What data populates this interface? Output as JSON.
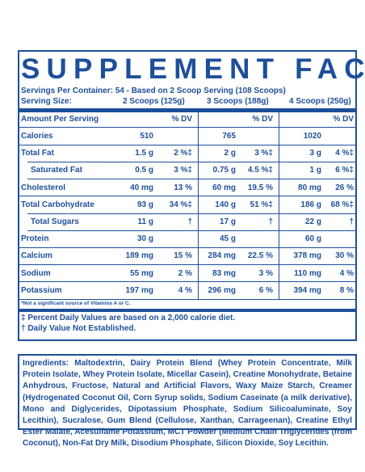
{
  "title": "SUPPLEMENT FACTS",
  "servings_per_container": "Servings Per Container: 54 - Based on 2 Scoop Serving (108 Scoops)",
  "serving_size_label": "Serving Size:",
  "serving_sizes": [
    "2 Scoops (125g)",
    "3 Scoops (188g)",
    "4 Scoops (250g)"
  ],
  "table": {
    "header": {
      "label": "Amount Per Serving",
      "dv": [
        "% DV",
        "% DV",
        "% DV"
      ]
    },
    "rows": [
      {
        "label": "Calories",
        "cells": [
          {
            "amount": "510"
          },
          {
            "amount": "765"
          },
          {
            "amount": "1020"
          }
        ]
      },
      {
        "label": "Total Fat",
        "cells": [
          {
            "amount": "1.5 g",
            "dv": "2 %‡"
          },
          {
            "amount": "2 g",
            "dv": "3 %‡"
          },
          {
            "amount": "3 g",
            "dv": "4 %‡"
          }
        ]
      },
      {
        "label": "Saturated Fat",
        "indented": true,
        "cells": [
          {
            "amount": "0.5 g",
            "dv": "3 %‡"
          },
          {
            "amount": "0.75 g",
            "dv": "4.5 %‡"
          },
          {
            "amount": "1 g",
            "dv": "6 %‡"
          }
        ]
      },
      {
        "label": "Cholesterol",
        "cells": [
          {
            "amount": "40 mg",
            "dv": "13 %"
          },
          {
            "amount": "60 mg",
            "dv": "19.5 %"
          },
          {
            "amount": "80 mg",
            "dv": "26 %"
          }
        ]
      },
      {
        "label": "Total Carbohydrate",
        "cells": [
          {
            "amount": "93 g",
            "dv": "34 %‡"
          },
          {
            "amount": "140 g",
            "dv": "51 %‡"
          },
          {
            "amount": "186 g",
            "dv": "68 %‡"
          }
        ]
      },
      {
        "label": "Total Sugars",
        "indented": true,
        "cells": [
          {
            "amount": "11 g",
            "dv": "†"
          },
          {
            "amount": "17 g",
            "dv": "†"
          },
          {
            "amount": "22 g",
            "dv": "†"
          }
        ]
      },
      {
        "label": "Protein",
        "cells": [
          {
            "amount": "30 g"
          },
          {
            "amount": "45 g"
          },
          {
            "amount": "60 g"
          }
        ]
      },
      {
        "label": "Calcium",
        "cells": [
          {
            "amount": "189 mg",
            "dv": "15 %"
          },
          {
            "amount": "284 mg",
            "dv": "22.5 %"
          },
          {
            "amount": "378 mg",
            "dv": "30 %"
          }
        ]
      },
      {
        "label": "Sodium",
        "cells": [
          {
            "amount": "55 mg",
            "dv": "2 %"
          },
          {
            "amount": "83 mg",
            "dv": "3 %"
          },
          {
            "amount": "110 mg",
            "dv": "4 %"
          }
        ]
      },
      {
        "label": "Potassium",
        "cells": [
          {
            "amount": "197 mg",
            "dv": "4 %"
          },
          {
            "amount": "296 mg",
            "dv": "6 %"
          },
          {
            "amount": "394 mg",
            "dv": "8 %"
          }
        ]
      }
    ],
    "footnote": "*Not a significant source of Vitamins A or C."
  },
  "notes": [
    "‡ Percent Daily Values are based on a 2,000 calorie diet.",
    "† Daily Value Not Established."
  ],
  "ingredients": {
    "label": "Ingredients:",
    "text": "Maltodextrin, Dairy Protein Blend (Whey Protein Concentrate, Milk Protein Isolate, Whey Protein Isolate, Micellar Casein), Creatine Monohydrate, Betaine Anhydrous, Fructose, Natural and Artificial Flavors, Waxy Maize Starch, Creamer (Hydrogenated Coconut Oil, Corn Syrup solids, Sodium Caseinate (a milk derivative), Mono and Diglycerides, Dipotassium Phosphate, Sodium Silicoaluminate, Soy Lecithin), Sucralose, Gum Blend (Cellulose, Xanthan, Carrageenan), Creatine Ethyl Ester Malate, Acesulfame Potassium, MCT Powder (Medium Chain Triglycerides (from Coconut), Non-Fat Dry Milk, Disodium Phosphate, Silicon Dioxide, Soy Lecithin."
  }
}
